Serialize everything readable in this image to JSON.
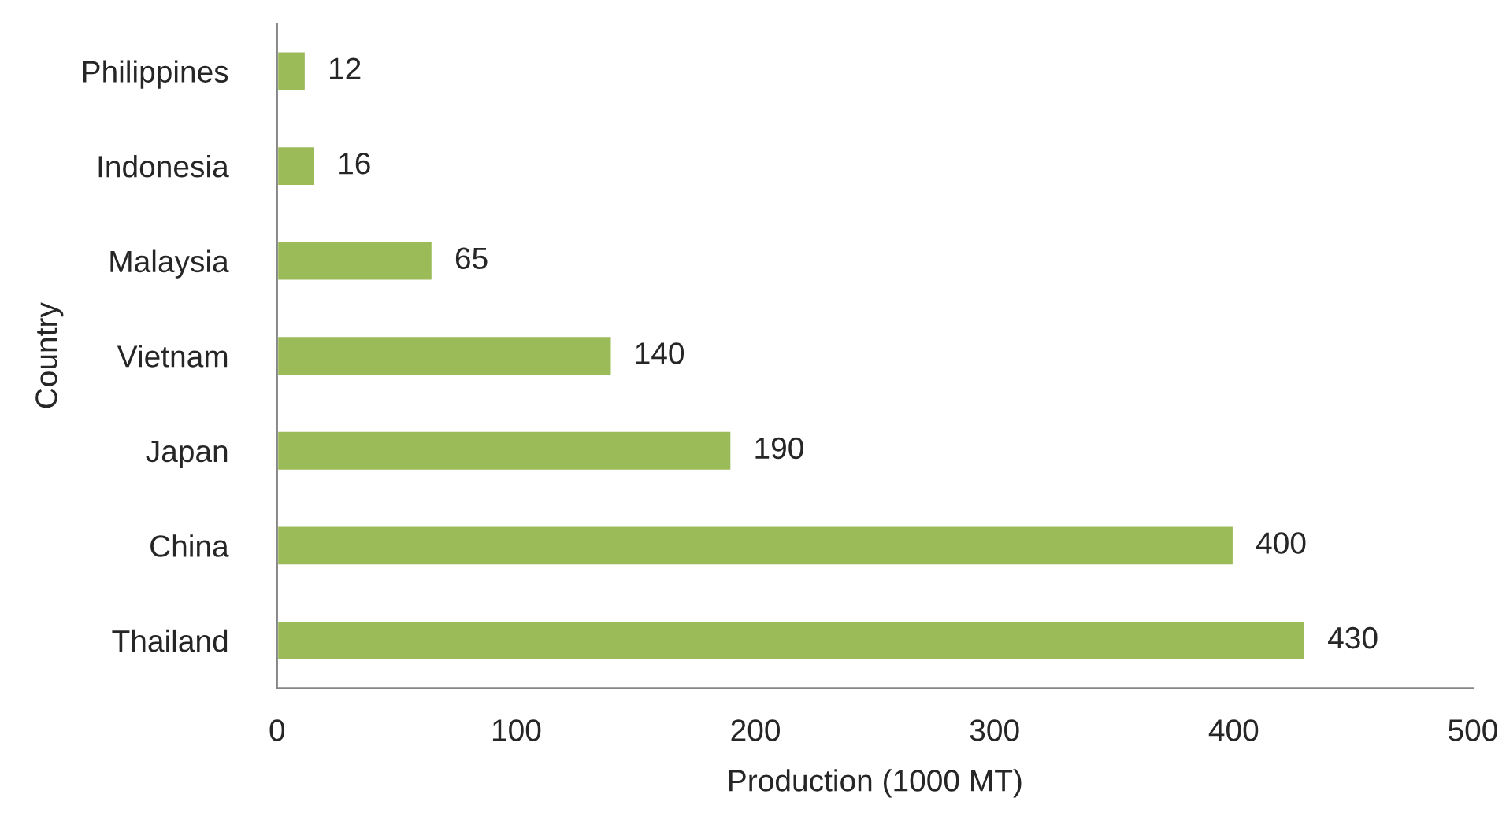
{
  "chart_data": {
    "type": "bar",
    "orientation": "horizontal",
    "xlabel": "Production (1000 MT)",
    "ylabel": "Country",
    "categories": [
      "Philippines",
      "Indonesia",
      "Malaysia",
      "Vietnam",
      "Japan",
      "China",
      "Thailand"
    ],
    "values": [
      12,
      16,
      65,
      140,
      190,
      400,
      430
    ],
    "color": "#9bbb59",
    "xlim": [
      0,
      500
    ],
    "xticks": [
      0,
      100,
      200,
      300,
      400,
      500
    ],
    "grid": false,
    "data_labels": true,
    "legend": false
  }
}
